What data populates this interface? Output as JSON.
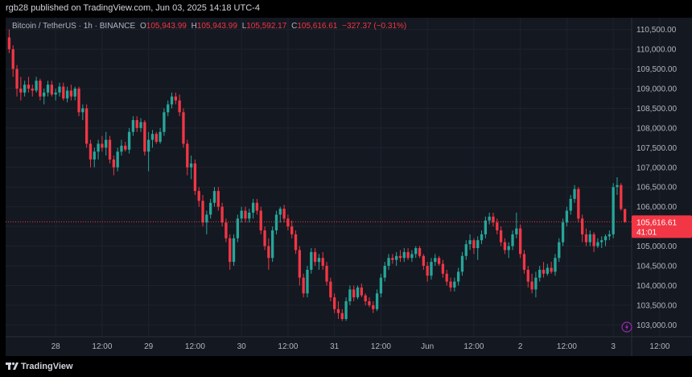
{
  "header": {
    "publisher": "rgb28 published on TradingView.com, Jun 03, 2025 14:18 UTC-4"
  },
  "legend": {
    "symbol": "Bitcoin / TetherUS · 1h · BINANCE",
    "o_label": "O",
    "o_value": "105,943.99",
    "h_label": "H",
    "h_value": "105,943.99",
    "l_label": "L",
    "l_value": "105,592.17",
    "c_label": "C",
    "c_value": "105,616.61",
    "change": "−327.37 (−0.31%)"
  },
  "price_tag": {
    "price": "105,616.61",
    "countdown": "41:01"
  },
  "footer": {
    "brand": "TradingView"
  },
  "colors": {
    "up": "#26a69a",
    "down": "#f23645",
    "background": "#141821",
    "grid": "#1e222d"
  },
  "chart_data": {
    "type": "candlestick",
    "symbol": "BTCUSDT",
    "interval": "1h",
    "ylim": [
      102700,
      110800
    ],
    "y_ticks": [
      {
        "value": 110500,
        "label": "110,500.00"
      },
      {
        "value": 110000,
        "label": "110,000.00"
      },
      {
        "value": 109500,
        "label": "109,500.00"
      },
      {
        "value": 109000,
        "label": "109,000.00"
      },
      {
        "value": 108500,
        "label": "108,500.00"
      },
      {
        "value": 108000,
        "label": "108,000.00"
      },
      {
        "value": 107500,
        "label": "107,500.00"
      },
      {
        "value": 107000,
        "label": "107,000.00"
      },
      {
        "value": 106500,
        "label": "106,500.00"
      },
      {
        "value": 106000,
        "label": "106,000.00"
      },
      {
        "value": 105500,
        "label": "105,500.00"
      },
      {
        "value": 105000,
        "label": "105,000.00"
      },
      {
        "value": 104500,
        "label": "104,500.00"
      },
      {
        "value": 104000,
        "label": "104,000.00"
      },
      {
        "value": 103500,
        "label": "103,500.00"
      },
      {
        "value": 103000,
        "label": "103,000.00"
      }
    ],
    "x_ticks": [
      {
        "index": 12,
        "label": "28"
      },
      {
        "index": 24,
        "label": "12:00"
      },
      {
        "index": 36,
        "label": "29"
      },
      {
        "index": 48,
        "label": "12:00"
      },
      {
        "index": 60,
        "label": "30"
      },
      {
        "index": 72,
        "label": "12:00"
      },
      {
        "index": 84,
        "label": "31"
      },
      {
        "index": 96,
        "label": "12:00"
      },
      {
        "index": 108,
        "label": "Jun"
      },
      {
        "index": 120,
        "label": "12:00"
      },
      {
        "index": 132,
        "label": "2"
      },
      {
        "index": 144,
        "label": "12:00"
      },
      {
        "index": 156,
        "label": "3"
      },
      {
        "index": 168,
        "label": "12:00"
      }
    ],
    "last_price": 105616.61,
    "candles": [
      {
        "o": 110300,
        "h": 110500,
        "l": 109900,
        "c": 110000
      },
      {
        "o": 110000,
        "h": 110100,
        "l": 109300,
        "c": 109500
      },
      {
        "o": 109500,
        "h": 109600,
        "l": 108800,
        "c": 109000
      },
      {
        "o": 109000,
        "h": 109300,
        "l": 108700,
        "c": 108900
      },
      {
        "o": 108900,
        "h": 109200,
        "l": 108800,
        "c": 109100
      },
      {
        "o": 109100,
        "h": 109300,
        "l": 108900,
        "c": 109000
      },
      {
        "o": 109000,
        "h": 109100,
        "l": 108800,
        "c": 108950
      },
      {
        "o": 108950,
        "h": 109300,
        "l": 108900,
        "c": 109200
      },
      {
        "o": 109200,
        "h": 109250,
        "l": 108700,
        "c": 108800
      },
      {
        "o": 108800,
        "h": 109000,
        "l": 108600,
        "c": 108900
      },
      {
        "o": 108900,
        "h": 109200,
        "l": 108800,
        "c": 109100
      },
      {
        "o": 109100,
        "h": 109200,
        "l": 108800,
        "c": 108850
      },
      {
        "o": 108850,
        "h": 109000,
        "l": 108700,
        "c": 108900
      },
      {
        "o": 108900,
        "h": 109150,
        "l": 108800,
        "c": 109050
      },
      {
        "o": 109050,
        "h": 109150,
        "l": 108700,
        "c": 108750
      },
      {
        "o": 108750,
        "h": 109050,
        "l": 108650,
        "c": 108950
      },
      {
        "o": 108950,
        "h": 109100,
        "l": 108700,
        "c": 108800
      },
      {
        "o": 108800,
        "h": 109050,
        "l": 108700,
        "c": 109000
      },
      {
        "o": 109000,
        "h": 109050,
        "l": 108300,
        "c": 108400
      },
      {
        "o": 108400,
        "h": 108600,
        "l": 108200,
        "c": 108500
      },
      {
        "o": 108500,
        "h": 108600,
        "l": 107500,
        "c": 107600
      },
      {
        "o": 107600,
        "h": 107700,
        "l": 107000,
        "c": 107200
      },
      {
        "o": 107200,
        "h": 107500,
        "l": 107000,
        "c": 107400
      },
      {
        "o": 107400,
        "h": 107700,
        "l": 107200,
        "c": 107600
      },
      {
        "o": 107600,
        "h": 107800,
        "l": 107400,
        "c": 107500
      },
      {
        "o": 107500,
        "h": 107900,
        "l": 107300,
        "c": 107700
      },
      {
        "o": 107700,
        "h": 107800,
        "l": 107100,
        "c": 107200
      },
      {
        "o": 107200,
        "h": 107300,
        "l": 106800,
        "c": 107000
      },
      {
        "o": 107000,
        "h": 107500,
        "l": 106900,
        "c": 107400
      },
      {
        "o": 107400,
        "h": 107700,
        "l": 107300,
        "c": 107550
      },
      {
        "o": 107550,
        "h": 107650,
        "l": 107400,
        "c": 107450
      },
      {
        "o": 107450,
        "h": 108000,
        "l": 107350,
        "c": 107900
      },
      {
        "o": 107900,
        "h": 108300,
        "l": 107800,
        "c": 108200
      },
      {
        "o": 108200,
        "h": 108300,
        "l": 107900,
        "c": 108000
      },
      {
        "o": 108000,
        "h": 108250,
        "l": 107900,
        "c": 108150
      },
      {
        "o": 108150,
        "h": 108200,
        "l": 107300,
        "c": 107400
      },
      {
        "o": 107400,
        "h": 107900,
        "l": 106900,
        "c": 107700
      },
      {
        "o": 107700,
        "h": 107950,
        "l": 107500,
        "c": 107850
      },
      {
        "o": 107850,
        "h": 107900,
        "l": 107600,
        "c": 107650
      },
      {
        "o": 107650,
        "h": 108000,
        "l": 107600,
        "c": 107900
      },
      {
        "o": 107900,
        "h": 108500,
        "l": 107800,
        "c": 108400
      },
      {
        "o": 108400,
        "h": 108700,
        "l": 108300,
        "c": 108600
      },
      {
        "o": 108600,
        "h": 108900,
        "l": 108500,
        "c": 108800
      },
      {
        "o": 108800,
        "h": 108900,
        "l": 108600,
        "c": 108700
      },
      {
        "o": 108700,
        "h": 108850,
        "l": 108300,
        "c": 108400
      },
      {
        "o": 108400,
        "h": 108500,
        "l": 107500,
        "c": 107600
      },
      {
        "o": 107600,
        "h": 107700,
        "l": 106800,
        "c": 107000
      },
      {
        "o": 107000,
        "h": 107300,
        "l": 106700,
        "c": 107100
      },
      {
        "o": 107100,
        "h": 107200,
        "l": 106300,
        "c": 106400
      },
      {
        "o": 106400,
        "h": 106500,
        "l": 106000,
        "c": 106150
      },
      {
        "o": 106150,
        "h": 106300,
        "l": 105500,
        "c": 105600
      },
      {
        "o": 105600,
        "h": 105900,
        "l": 105300,
        "c": 105800
      },
      {
        "o": 105800,
        "h": 106200,
        "l": 105700,
        "c": 106100
      },
      {
        "o": 106100,
        "h": 106500,
        "l": 106000,
        "c": 106400
      },
      {
        "o": 106400,
        "h": 106500,
        "l": 105900,
        "c": 106000
      },
      {
        "o": 106000,
        "h": 106100,
        "l": 105500,
        "c": 105600
      },
      {
        "o": 105600,
        "h": 105700,
        "l": 105100,
        "c": 105200
      },
      {
        "o": 105200,
        "h": 105300,
        "l": 104400,
        "c": 104600
      },
      {
        "o": 104600,
        "h": 105300,
        "l": 104500,
        "c": 105200
      },
      {
        "o": 105200,
        "h": 105800,
        "l": 105100,
        "c": 105700
      },
      {
        "o": 105700,
        "h": 106000,
        "l": 105600,
        "c": 105900
      },
      {
        "o": 105900,
        "h": 106000,
        "l": 105600,
        "c": 105700
      },
      {
        "o": 105700,
        "h": 105950,
        "l": 105600,
        "c": 105850
      },
      {
        "o": 105850,
        "h": 106200,
        "l": 105700,
        "c": 106100
      },
      {
        "o": 106100,
        "h": 106200,
        "l": 105800,
        "c": 105900
      },
      {
        "o": 105900,
        "h": 106000,
        "l": 105300,
        "c": 105400
      },
      {
        "o": 105400,
        "h": 105500,
        "l": 104900,
        "c": 105000
      },
      {
        "o": 105000,
        "h": 105200,
        "l": 104400,
        "c": 104700
      },
      {
        "o": 104700,
        "h": 105500,
        "l": 104600,
        "c": 105400
      },
      {
        "o": 105400,
        "h": 105900,
        "l": 105300,
        "c": 105800
      },
      {
        "o": 105800,
        "h": 106000,
        "l": 105600,
        "c": 105950
      },
      {
        "o": 105950,
        "h": 106050,
        "l": 105600,
        "c": 105700
      },
      {
        "o": 105700,
        "h": 105800,
        "l": 105400,
        "c": 105500
      },
      {
        "o": 105500,
        "h": 105650,
        "l": 105200,
        "c": 105300
      },
      {
        "o": 105300,
        "h": 105400,
        "l": 104800,
        "c": 104900
      },
      {
        "o": 104900,
        "h": 105000,
        "l": 104000,
        "c": 104200
      },
      {
        "o": 104200,
        "h": 104300,
        "l": 103700,
        "c": 103800
      },
      {
        "o": 103800,
        "h": 104500,
        "l": 103700,
        "c": 104400
      },
      {
        "o": 104400,
        "h": 104950,
        "l": 104300,
        "c": 104850
      },
      {
        "o": 104850,
        "h": 104950,
        "l": 104500,
        "c": 104600
      },
      {
        "o": 104600,
        "h": 104800,
        "l": 104400,
        "c": 104700
      },
      {
        "o": 104700,
        "h": 104850,
        "l": 104400,
        "c": 104500
      },
      {
        "o": 104500,
        "h": 104600,
        "l": 104000,
        "c": 104100
      },
      {
        "o": 104100,
        "h": 104200,
        "l": 103600,
        "c": 103700
      },
      {
        "o": 103700,
        "h": 103800,
        "l": 103300,
        "c": 103400
      },
      {
        "o": 103400,
        "h": 103600,
        "l": 103150,
        "c": 103300
      },
      {
        "o": 103300,
        "h": 103400,
        "l": 103100,
        "c": 103150
      },
      {
        "o": 103150,
        "h": 103700,
        "l": 103100,
        "c": 103600
      },
      {
        "o": 103600,
        "h": 104000,
        "l": 103500,
        "c": 103900
      },
      {
        "o": 103900,
        "h": 104000,
        "l": 103600,
        "c": 103700
      },
      {
        "o": 103700,
        "h": 104000,
        "l": 103650,
        "c": 103950
      },
      {
        "o": 103950,
        "h": 104050,
        "l": 103700,
        "c": 103750
      },
      {
        "o": 103750,
        "h": 103800,
        "l": 103500,
        "c": 103600
      },
      {
        "o": 103600,
        "h": 103700,
        "l": 103450,
        "c": 103500
      },
      {
        "o": 103500,
        "h": 103600,
        "l": 103300,
        "c": 103400
      },
      {
        "o": 103400,
        "h": 103900,
        "l": 103350,
        "c": 103800
      },
      {
        "o": 103800,
        "h": 104300,
        "l": 103700,
        "c": 104200
      },
      {
        "o": 104200,
        "h": 104600,
        "l": 104100,
        "c": 104500
      },
      {
        "o": 104500,
        "h": 104800,
        "l": 104400,
        "c": 104700
      },
      {
        "o": 104700,
        "h": 104800,
        "l": 104550,
        "c": 104650
      },
      {
        "o": 104650,
        "h": 104850,
        "l": 104500,
        "c": 104750
      },
      {
        "o": 104750,
        "h": 104900,
        "l": 104600,
        "c": 104700
      },
      {
        "o": 104700,
        "h": 104950,
        "l": 104600,
        "c": 104850
      },
      {
        "o": 104850,
        "h": 104950,
        "l": 104650,
        "c": 104700
      },
      {
        "o": 104700,
        "h": 104900,
        "l": 104600,
        "c": 104800
      },
      {
        "o": 104800,
        "h": 105000,
        "l": 104700,
        "c": 104950
      },
      {
        "o": 104950,
        "h": 105000,
        "l": 104700,
        "c": 104750
      },
      {
        "o": 104750,
        "h": 104800,
        "l": 104400,
        "c": 104500
      },
      {
        "o": 104500,
        "h": 104600,
        "l": 104100,
        "c": 104250
      },
      {
        "o": 104250,
        "h": 104700,
        "l": 104150,
        "c": 104600
      },
      {
        "o": 104600,
        "h": 104800,
        "l": 104500,
        "c": 104700
      },
      {
        "o": 104700,
        "h": 104750,
        "l": 104500,
        "c": 104550
      },
      {
        "o": 104550,
        "h": 104650,
        "l": 104200,
        "c": 104300
      },
      {
        "o": 104300,
        "h": 104400,
        "l": 104000,
        "c": 104100
      },
      {
        "o": 104100,
        "h": 104200,
        "l": 103850,
        "c": 103950
      },
      {
        "o": 103950,
        "h": 104200,
        "l": 103850,
        "c": 104100
      },
      {
        "o": 104100,
        "h": 104450,
        "l": 104000,
        "c": 104350
      },
      {
        "o": 104350,
        "h": 104850,
        "l": 104250,
        "c": 104750
      },
      {
        "o": 104750,
        "h": 105150,
        "l": 104650,
        "c": 105050
      },
      {
        "o": 105050,
        "h": 105300,
        "l": 104900,
        "c": 105150
      },
      {
        "o": 105150,
        "h": 105200,
        "l": 104800,
        "c": 104950
      },
      {
        "o": 104950,
        "h": 105250,
        "l": 104650,
        "c": 105150
      },
      {
        "o": 105150,
        "h": 105400,
        "l": 105050,
        "c": 105300
      },
      {
        "o": 105300,
        "h": 105750,
        "l": 105200,
        "c": 105650
      },
      {
        "o": 105650,
        "h": 105850,
        "l": 105550,
        "c": 105750
      },
      {
        "o": 105750,
        "h": 105850,
        "l": 105500,
        "c": 105600
      },
      {
        "o": 105600,
        "h": 105700,
        "l": 105300,
        "c": 105400
      },
      {
        "o": 105400,
        "h": 105500,
        "l": 105000,
        "c": 105100
      },
      {
        "o": 105100,
        "h": 105200,
        "l": 104800,
        "c": 104900
      },
      {
        "o": 104900,
        "h": 105100,
        "l": 104700,
        "c": 105000
      },
      {
        "o": 105000,
        "h": 105400,
        "l": 104900,
        "c": 105300
      },
      {
        "o": 105300,
        "h": 105850,
        "l": 105200,
        "c": 105450
      },
      {
        "o": 105450,
        "h": 105550,
        "l": 104700,
        "c": 104800
      },
      {
        "o": 104800,
        "h": 104900,
        "l": 104300,
        "c": 104400
      },
      {
        "o": 104400,
        "h": 104500,
        "l": 103950,
        "c": 104100
      },
      {
        "o": 104100,
        "h": 104300,
        "l": 103800,
        "c": 103900
      },
      {
        "o": 103900,
        "h": 104350,
        "l": 103700,
        "c": 104200
      },
      {
        "o": 104200,
        "h": 104500,
        "l": 104100,
        "c": 104400
      },
      {
        "o": 104400,
        "h": 104600,
        "l": 104200,
        "c": 104300
      },
      {
        "o": 104300,
        "h": 104550,
        "l": 104250,
        "c": 104450
      },
      {
        "o": 104450,
        "h": 104600,
        "l": 104300,
        "c": 104350
      },
      {
        "o": 104350,
        "h": 104800,
        "l": 104250,
        "c": 104700
      },
      {
        "o": 104700,
        "h": 105200,
        "l": 104600,
        "c": 105100
      },
      {
        "o": 105100,
        "h": 105700,
        "l": 105000,
        "c": 105600
      },
      {
        "o": 105600,
        "h": 106000,
        "l": 105500,
        "c": 105900
      },
      {
        "o": 105900,
        "h": 106300,
        "l": 105800,
        "c": 106200
      },
      {
        "o": 106200,
        "h": 106550,
        "l": 106100,
        "c": 106450
      },
      {
        "o": 106450,
        "h": 106500,
        "l": 105600,
        "c": 105700
      },
      {
        "o": 105700,
        "h": 105800,
        "l": 105100,
        "c": 105300
      },
      {
        "o": 105300,
        "h": 105450,
        "l": 105000,
        "c": 105100
      },
      {
        "o": 105100,
        "h": 105400,
        "l": 105000,
        "c": 105300
      },
      {
        "o": 105300,
        "h": 105350,
        "l": 104850,
        "c": 105000
      },
      {
        "o": 105000,
        "h": 105200,
        "l": 104950,
        "c": 105100
      },
      {
        "o": 105100,
        "h": 105250,
        "l": 104950,
        "c": 105150
      },
      {
        "o": 105150,
        "h": 105300,
        "l": 105000,
        "c": 105250
      },
      {
        "o": 105250,
        "h": 105400,
        "l": 105150,
        "c": 105300
      },
      {
        "o": 105300,
        "h": 106600,
        "l": 105200,
        "c": 106500
      },
      {
        "o": 106500,
        "h": 106750,
        "l": 106300,
        "c": 106550
      },
      {
        "o": 106550,
        "h": 106600,
        "l": 105900,
        "c": 105944
      },
      {
        "o": 105944,
        "h": 105944,
        "l": 105592,
        "c": 105616.61
      }
    ]
  }
}
